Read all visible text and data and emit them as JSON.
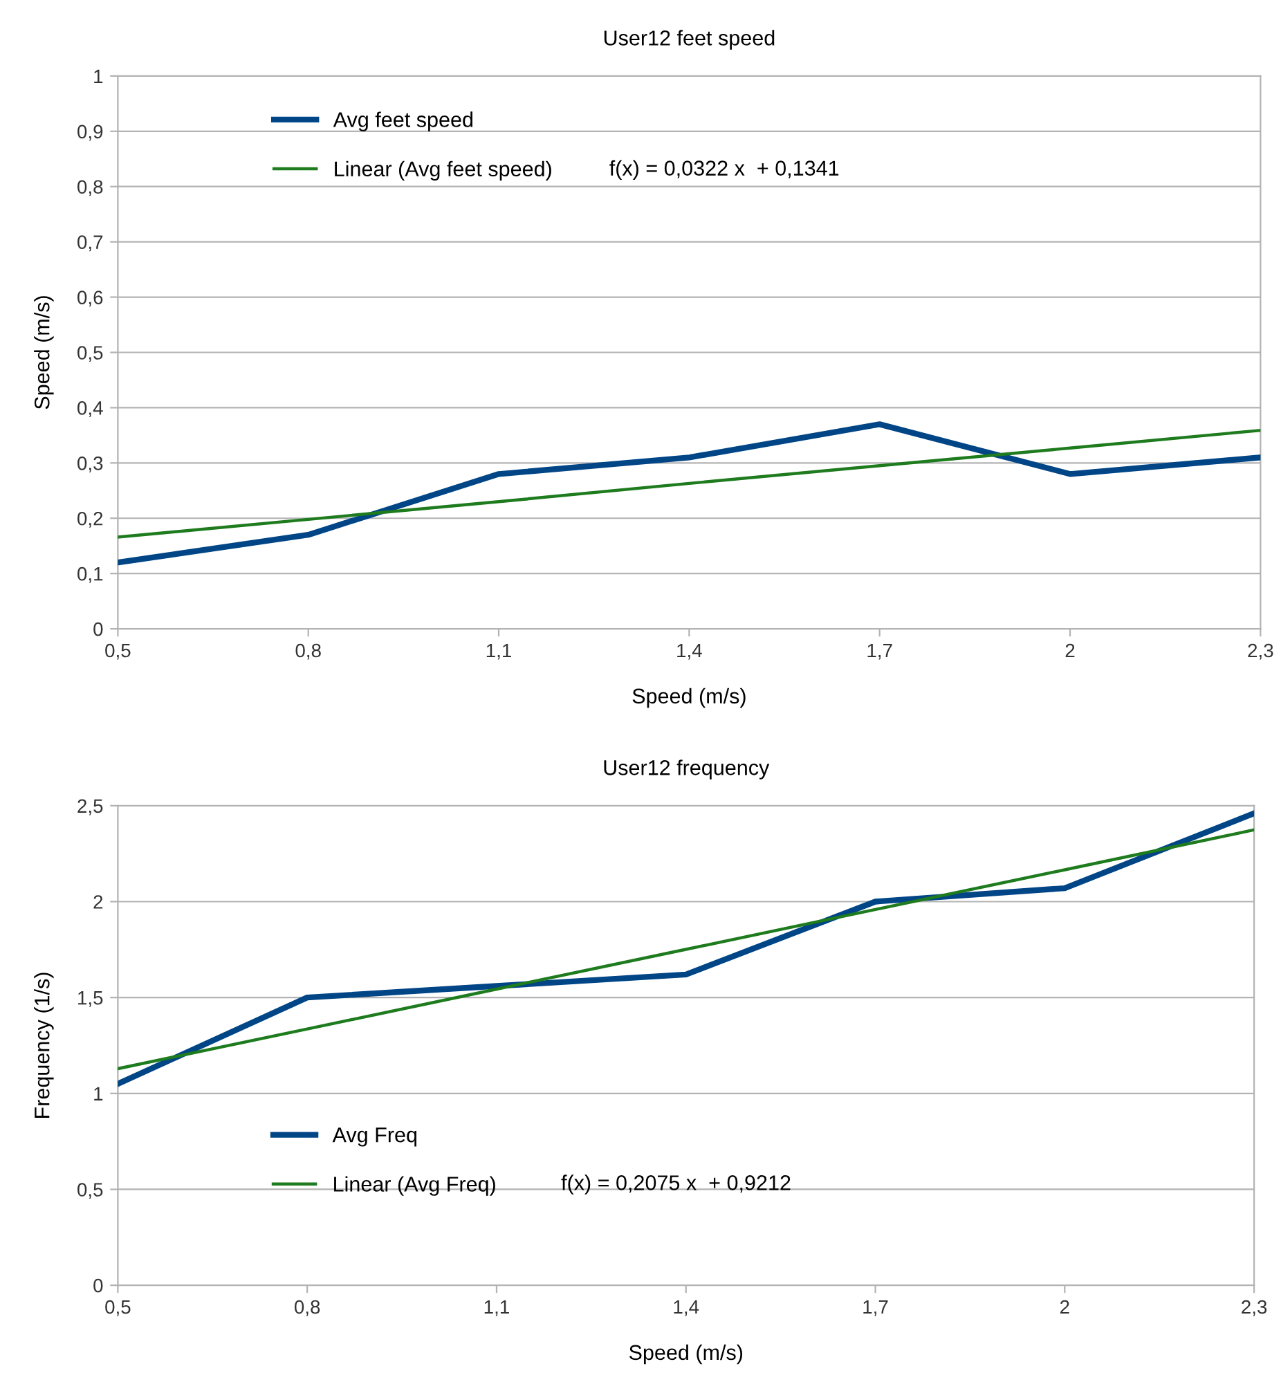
{
  "chart_data": [
    {
      "type": "line",
      "title": "User12 feet speed",
      "xlabel": "Speed (m/s)",
      "ylabel": "Speed (m/s)",
      "x": [
        0.5,
        0.8,
        1.1,
        1.4,
        1.7,
        2.0,
        2.3
      ],
      "series": [
        {
          "name": "Avg feet speed",
          "color": "#004586",
          "values": [
            0.12,
            0.17,
            0.28,
            0.31,
            0.37,
            0.28,
            0.31
          ]
        },
        {
          "name": "Linear (Avg feet speed)",
          "color": "#1e7b1e",
          "values": [
            0.166,
            0.198,
            0.23,
            0.263,
            0.295,
            0.327,
            0.359
          ]
        }
      ],
      "xlim": [
        0.5,
        2.3
      ],
      "xticks": [
        {
          "value": 0.5,
          "label": "0,5"
        },
        {
          "value": 0.8,
          "label": "0,8"
        },
        {
          "value": 1.1,
          "label": "1,1"
        },
        {
          "value": 1.4,
          "label": "1,4"
        },
        {
          "value": 1.7,
          "label": "1,7"
        },
        {
          "value": 2,
          "label": "2"
        },
        {
          "value": 2.3,
          "label": "2,3"
        }
      ],
      "ylim": [
        0,
        1
      ],
      "yticks": [
        0,
        {
          "value": 0.1,
          "label": "0,1"
        },
        {
          "value": 0.2,
          "label": "0,2"
        },
        {
          "value": 0.3,
          "label": "0,3"
        },
        {
          "value": 0.4,
          "label": "0,4"
        },
        {
          "value": 0.5,
          "label": "0,5"
        },
        {
          "value": 0.6,
          "label": "0,6"
        },
        {
          "value": 0.7,
          "label": "0,7"
        },
        {
          "value": 0.8,
          "label": "0,8"
        },
        {
          "value": 0.9,
          "label": "0,9"
        },
        1
      ],
      "grid": "y",
      "legend": "top left",
      "marker": "none",
      "line_style": "solid",
      "annotations": [
        "f(x) = 0,0322 x  + 0,1341"
      ]
    },
    {
      "type": "line",
      "title": "User12 frequency",
      "xlabel": "Speed (m/s)",
      "ylabel": "Frequency (1/s)",
      "x": [
        0.5,
        0.8,
        1.1,
        1.4,
        1.7,
        2.0,
        2.3
      ],
      "series": [
        {
          "name": "Avg Freq",
          "color": "#004586",
          "values": [
            1.05,
            1.5,
            1.56,
            1.62,
            2.0,
            2.07,
            2.46
          ]
        },
        {
          "name": "Linear (Avg Freq)",
          "color": "#1e7b1e",
          "values": [
            1.129,
            1.336,
            1.544,
            1.751,
            1.959,
            2.166,
            2.374
          ]
        }
      ],
      "xlim": [
        0.5,
        2.3
      ],
      "xticks": [
        {
          "value": 0.5,
          "label": "0,5"
        },
        {
          "value": 0.8,
          "label": "0,8"
        },
        {
          "value": 1.1,
          "label": "1,1"
        },
        {
          "value": 1.4,
          "label": "1,4"
        },
        {
          "value": 1.7,
          "label": "1,7"
        },
        {
          "value": 2,
          "label": "2"
        },
        {
          "value": 2.3,
          "label": "2,3"
        }
      ],
      "ylim": [
        0,
        2.5
      ],
      "yticks": [
        0,
        {
          "value": 0.5,
          "label": "0,5"
        },
        1,
        {
          "value": 1.5,
          "label": "1,5"
        },
        2,
        {
          "value": 2.5,
          "label": "2,5"
        }
      ],
      "grid": "y",
      "legend": "bottom left",
      "marker": "none",
      "line_style": "solid",
      "annotations": [
        "f(x) = 0,2075 x  + 0,9212"
      ]
    }
  ]
}
